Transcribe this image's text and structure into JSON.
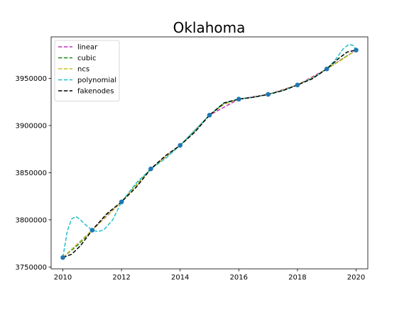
{
  "chart_data": {
    "type": "line",
    "title": "Oklahoma",
    "xlabel": "",
    "ylabel": "",
    "xlim": [
      2009.6,
      2020.4
    ],
    "ylim": [
      3748000,
      3994000
    ],
    "x_ticks": [
      2010,
      2012,
      2014,
      2016,
      2018,
      2020
    ],
    "y_ticks": [
      3750000,
      3800000,
      3850000,
      3900000,
      3950000
    ],
    "grid": false,
    "legend_placement": "top-left",
    "points": {
      "x": [
        2010,
        2011,
        2012,
        2013,
        2014,
        2015,
        2016,
        2017,
        2018,
        2019,
        2020
      ],
      "y": [
        3760000,
        3789000,
        3819000,
        3854000,
        3879000,
        3911000,
        3928000,
        3933000,
        3943000,
        3960000,
        3980000
      ],
      "color": "#1f77b4"
    },
    "series": [
      {
        "name": "linear",
        "color": "#c030c0",
        "x": [
          2010,
          2011,
          2012,
          2013,
          2014,
          2015,
          2016,
          2017,
          2018,
          2019,
          2020
        ],
        "y": [
          3760000,
          3789000,
          3819000,
          3854000,
          3879000,
          3911000,
          3928000,
          3933000,
          3943000,
          3960000,
          3980000
        ]
      },
      {
        "name": "cubic",
        "color": "#1a8a1a",
        "x": [
          2010,
          2010.5,
          2011,
          2011.5,
          2012,
          2012.5,
          2013,
          2013.5,
          2014,
          2014.5,
          2015,
          2015.5,
          2016,
          2016.5,
          2017,
          2017.5,
          2018,
          2018.5,
          2019,
          2019.5,
          2020
        ],
        "y": [
          3760000,
          3773000,
          3789000,
          3805000,
          3819000,
          3837000,
          3854000,
          3867000,
          3879000,
          3894000,
          3911000,
          3923000,
          3928000,
          3930000,
          3933000,
          3937500,
          3943000,
          3950500,
          3960000,
          3970000,
          3980000
        ]
      },
      {
        "name": "ncs",
        "color": "#c8c020",
        "x": [
          2010,
          2010.5,
          2011,
          2011.5,
          2012,
          2012.5,
          2013,
          2013.5,
          2014,
          2014.5,
          2015,
          2015.5,
          2016,
          2016.5,
          2017,
          2017.5,
          2018,
          2018.5,
          2019,
          2019.5,
          2020
        ],
        "y": [
          3760000,
          3774500,
          3789000,
          3804500,
          3819000,
          3836500,
          3854000,
          3867000,
          3879000,
          3894500,
          3911000,
          3922500,
          3928000,
          3930000,
          3933000,
          3937500,
          3943000,
          3950500,
          3960000,
          3969500,
          3980000
        ]
      },
      {
        "name": "polynomial",
        "color": "#20c0c8",
        "x": [
          2010,
          2010.15,
          2010.3,
          2010.45,
          2010.6,
          2010.8,
          2011,
          2011.2,
          2011.4,
          2011.7,
          2012,
          2012.5,
          2013,
          2013.5,
          2014,
          2014.5,
          2015,
          2015.5,
          2016,
          2016.5,
          2017,
          2017.5,
          2018,
          2018.5,
          2019,
          2019.3,
          2019.55,
          2019.75,
          2019.9,
          2020
        ],
        "y": [
          3760000,
          3788000,
          3801000,
          3803500,
          3800000,
          3794000,
          3789000,
          3787500,
          3789500,
          3800000,
          3819000,
          3839000,
          3854000,
          3865000,
          3879000,
          3895000,
          3911000,
          3924000,
          3928000,
          3930000,
          3933000,
          3937000,
          3943000,
          3950000,
          3960000,
          3970000,
          3981000,
          3986000,
          3985000,
          3980000
        ]
      },
      {
        "name": "fakenodes",
        "color": "#000000",
        "x": [
          2010,
          2010.3,
          2010.6,
          2011,
          2011.5,
          2012,
          2012.5,
          2013,
          2013.5,
          2014,
          2014.5,
          2015,
          2015.5,
          2016,
          2016.5,
          2017,
          2017.5,
          2018,
          2018.5,
          2019,
          2019.4,
          2019.7,
          2020
        ],
        "y": [
          3760000,
          3763500,
          3772500,
          3789000,
          3806500,
          3819000,
          3834500,
          3854000,
          3868000,
          3879000,
          3893000,
          3911000,
          3924000,
          3928000,
          3930000,
          3933000,
          3937000,
          3943000,
          3949500,
          3960000,
          3971000,
          3978000,
          3980000
        ]
      }
    ]
  }
}
